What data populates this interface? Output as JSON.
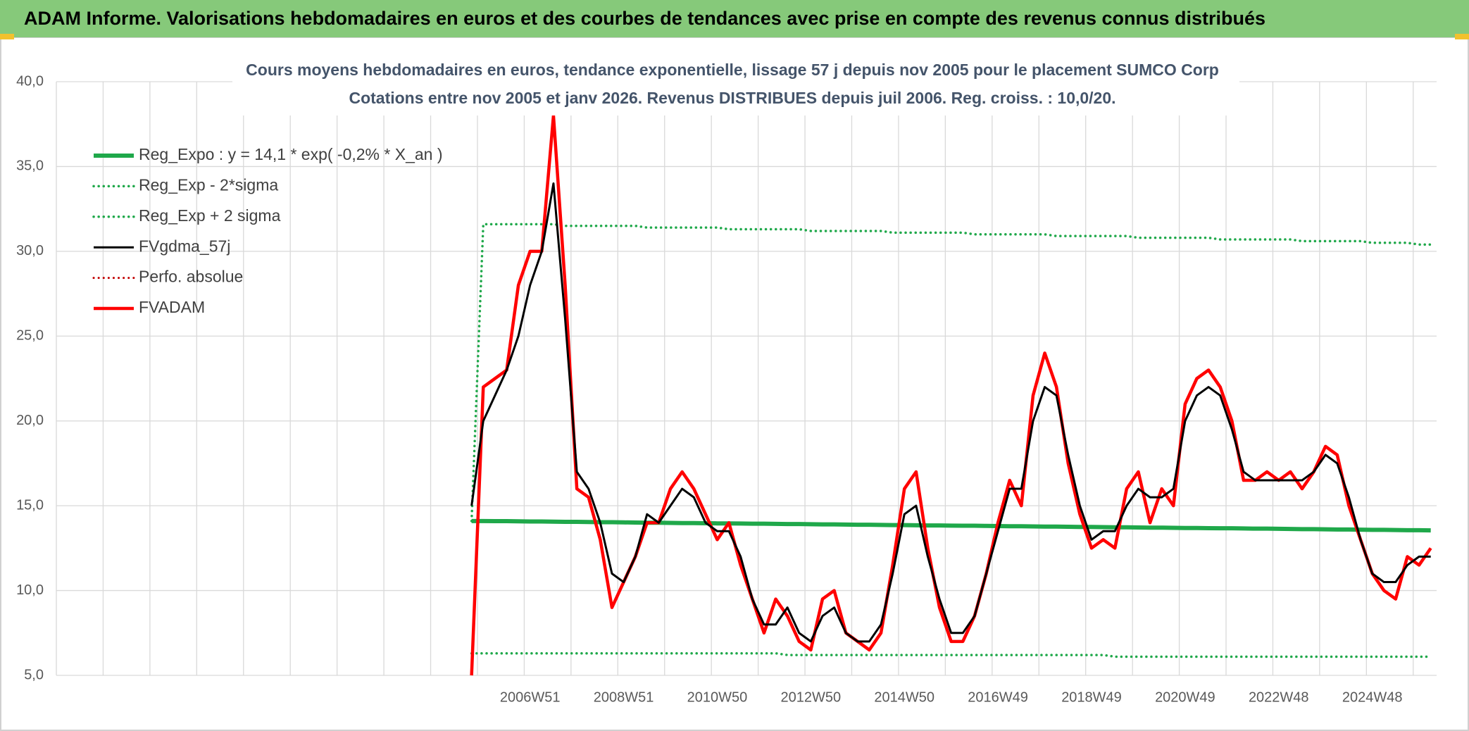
{
  "header": {
    "title": "ADAM Informe. Valorisations hebdomadaires en euros et des courbes de tendances avec prise en compte des revenus connus distribués"
  },
  "chart_data": {
    "type": "line",
    "title": "Cours moyens hebdomadaires en euros, tendance exponentielle, lissage 57 j depuis nov 2005 pour le placement SUMCO Corp",
    "subtitle": "Cotations entre nov 2005 et janv 2026. Revenus DISTRIBUES depuis juil 2006. Reg. croiss. : 10,0/20.",
    "categories": [
      null,
      null,
      null,
      null,
      null,
      null,
      null,
      null,
      null,
      null,
      null,
      null,
      null,
      null,
      null,
      null,
      null,
      null,
      null,
      null,
      null,
      null,
      null,
      null,
      null,
      null,
      null,
      null,
      null,
      null,
      null,
      null,
      null,
      null,
      null,
      null,
      null,
      null,
      null,
      null,
      "2006W51",
      null,
      null,
      null,
      null,
      null,
      null,
      null,
      "2008W51",
      null,
      null,
      null,
      null,
      null,
      null,
      null,
      "2010W50",
      null,
      null,
      null,
      null,
      null,
      null,
      null,
      "2012W50",
      null,
      null,
      null,
      null,
      null,
      null,
      null,
      "2014W50",
      null,
      null,
      null,
      null,
      null,
      null,
      null,
      "2016W49",
      null,
      null,
      null,
      null,
      null,
      null,
      null,
      "2018W49",
      null,
      null,
      null,
      null,
      null,
      null,
      null,
      "2020W49",
      null,
      null,
      null,
      null,
      null,
      null,
      null,
      "2022W48",
      null,
      null,
      null,
      null,
      null,
      null,
      null,
      "2024W48",
      null,
      null,
      null,
      null,
      null
    ],
    "ylim": [
      5,
      40
    ],
    "yticks": [
      {
        "value": 5,
        "label": "5,0"
      },
      {
        "value": 10,
        "label": "10,0"
      },
      {
        "value": 15,
        "label": "15,0"
      },
      {
        "value": 20,
        "label": "20,0"
      },
      {
        "value": 25,
        "label": "25,0"
      },
      {
        "value": 30,
        "label": "30,0"
      },
      {
        "value": 35,
        "label": "35,0"
      },
      {
        "value": 40,
        "label": "40,0"
      }
    ],
    "grid": true,
    "legend": "upper left",
    "series": [
      {
        "name": "Reg_Expo : y = 14,1 * exp( -0,2% *  X_an )",
        "color": "#1fa84a",
        "style": "solid",
        "values": [
          null,
          null,
          null,
          null,
          null,
          null,
          null,
          null,
          null,
          null,
          null,
          null,
          null,
          null,
          null,
          null,
          null,
          null,
          null,
          null,
          null,
          null,
          null,
          null,
          null,
          null,
          null,
          null,
          null,
          null,
          null,
          null,
          null,
          null,
          null,
          14.1,
          14.1,
          14.09,
          14.09,
          14.08,
          14.07,
          14.07,
          14.06,
          14.05,
          14.05,
          14.04,
          14.03,
          14.03,
          14.02,
          14.01,
          14.0,
          14.0,
          13.99,
          13.98,
          13.98,
          13.97,
          13.96,
          13.96,
          13.95,
          13.94,
          13.94,
          13.93,
          13.92,
          13.92,
          13.91,
          13.9,
          13.9,
          13.89,
          13.88,
          13.88,
          13.87,
          13.86,
          13.86,
          13.85,
          13.84,
          13.84,
          13.83,
          13.82,
          13.82,
          13.81,
          13.8,
          13.79,
          13.79,
          13.78,
          13.77,
          13.77,
          13.76,
          13.75,
          13.75,
          13.74,
          13.73,
          13.73,
          13.72,
          13.71,
          13.71,
          13.7,
          13.69,
          13.69,
          13.68,
          13.67,
          13.67,
          13.66,
          13.65,
          13.65,
          13.64,
          13.63,
          13.62,
          13.62,
          13.61,
          13.6,
          13.6,
          13.59,
          13.58,
          13.58,
          13.57,
          13.56,
          13.56,
          13.55
        ]
      },
      {
        "name": "Reg_Exp - 2*sigma",
        "color": "#1fa84a",
        "style": "dotted",
        "values": [
          null,
          null,
          null,
          null,
          null,
          null,
          null,
          null,
          null,
          null,
          null,
          null,
          null,
          null,
          null,
          null,
          null,
          null,
          null,
          null,
          null,
          null,
          null,
          null,
          null,
          null,
          null,
          null,
          null,
          null,
          null,
          null,
          null,
          null,
          null,
          6.3,
          6.3,
          6.3,
          6.3,
          6.3,
          6.3,
          6.3,
          6.3,
          6.3,
          6.3,
          6.3,
          6.3,
          6.3,
          6.3,
          6.3,
          6.3,
          6.3,
          6.3,
          6.3,
          6.3,
          6.3,
          6.3,
          6.3,
          6.3,
          6.3,
          6.3,
          6.3,
          6.2,
          6.2,
          6.2,
          6.2,
          6.2,
          6.2,
          6.2,
          6.2,
          6.2,
          6.2,
          6.2,
          6.2,
          6.2,
          6.2,
          6.2,
          6.2,
          6.2,
          6.2,
          6.2,
          6.2,
          6.2,
          6.2,
          6.2,
          6.2,
          6.2,
          6.2,
          6.2,
          6.2,
          6.1,
          6.1,
          6.1,
          6.1,
          6.1,
          6.1,
          6.1,
          6.1,
          6.1,
          6.1,
          6.1,
          6.1,
          6.1,
          6.1,
          6.1,
          6.1,
          6.1,
          6.1,
          6.1,
          6.1,
          6.1,
          6.1,
          6.1,
          6.1,
          6.1,
          6.1,
          6.1,
          6.1
        ]
      },
      {
        "name": "Reg_Exp + 2 sigma",
        "color": "#1fa84a",
        "style": "dotted",
        "values": [
          null,
          null,
          null,
          null,
          null,
          null,
          null,
          null,
          null,
          null,
          null,
          null,
          null,
          null,
          null,
          null,
          null,
          null,
          null,
          null,
          null,
          null,
          null,
          null,
          null,
          null,
          null,
          null,
          null,
          null,
          null,
          null,
          null,
          null,
          null,
          14.1,
          31.6,
          31.6,
          31.6,
          31.6,
          31.6,
          31.6,
          31.6,
          31.5,
          31.5,
          31.5,
          31.5,
          31.5,
          31.5,
          31.5,
          31.4,
          31.4,
          31.4,
          31.4,
          31.4,
          31.4,
          31.4,
          31.3,
          31.3,
          31.3,
          31.3,
          31.3,
          31.3,
          31.3,
          31.2,
          31.2,
          31.2,
          31.2,
          31.2,
          31.2,
          31.2,
          31.1,
          31.1,
          31.1,
          31.1,
          31.1,
          31.1,
          31.1,
          31.0,
          31.0,
          31.0,
          31.0,
          31.0,
          31.0,
          31.0,
          30.9,
          30.9,
          30.9,
          30.9,
          30.9,
          30.9,
          30.9,
          30.8,
          30.8,
          30.8,
          30.8,
          30.8,
          30.8,
          30.8,
          30.7,
          30.7,
          30.7,
          30.7,
          30.7,
          30.7,
          30.7,
          30.6,
          30.6,
          30.6,
          30.6,
          30.6,
          30.6,
          30.5,
          30.5,
          30.5,
          30.5,
          30.4,
          30.4
        ]
      },
      {
        "name": "FVgdma_57j",
        "color": "#000000",
        "style": "solid",
        "values": [
          null,
          null,
          null,
          null,
          null,
          null,
          null,
          null,
          null,
          null,
          null,
          null,
          null,
          null,
          null,
          null,
          null,
          null,
          null,
          null,
          null,
          null,
          null,
          null,
          null,
          null,
          null,
          null,
          null,
          null,
          null,
          null,
          null,
          null,
          null,
          15,
          20,
          21.5,
          23,
          25,
          28,
          30,
          34,
          26,
          17,
          16,
          14,
          11,
          10.5,
          12,
          14.5,
          14,
          15,
          16,
          15.5,
          14,
          13.5,
          13.5,
          12,
          9.5,
          8,
          8,
          9,
          7.5,
          7,
          8.5,
          9,
          7.5,
          7,
          7,
          8,
          11,
          14.5,
          15,
          12,
          9.5,
          7.5,
          7.5,
          8.5,
          11,
          13.5,
          16,
          16,
          20,
          22,
          21.5,
          18,
          15,
          13,
          13.5,
          13.5,
          15,
          16,
          15.5,
          15.5,
          16,
          20,
          21.5,
          22,
          21.5,
          19.5,
          17,
          16.5,
          16.5,
          16.5,
          16.5,
          16.5,
          17,
          18,
          17.5,
          15.5,
          13,
          11,
          10.5,
          10.5,
          11.5,
          12,
          12
        ]
      },
      {
        "name": "Perfo. absolue",
        "color": "#c00000",
        "style": "dotted",
        "values": [
          null,
          null,
          null,
          null,
          null,
          null,
          null,
          null,
          null,
          null,
          null,
          null,
          null,
          null,
          null,
          null,
          null,
          null,
          null,
          null,
          null,
          null,
          null,
          null,
          null,
          null,
          null,
          null,
          null,
          null,
          null,
          null,
          null,
          null,
          null,
          null,
          null,
          null,
          null,
          null,
          null,
          null,
          null,
          null,
          null,
          null,
          null,
          null,
          null,
          null,
          null,
          null,
          null,
          null,
          null,
          null,
          null,
          null,
          null,
          null,
          null,
          null,
          null,
          null,
          null,
          null,
          null,
          null,
          null,
          null,
          null,
          null,
          null,
          null,
          null,
          null,
          null,
          null,
          null,
          null,
          null,
          null,
          null,
          null,
          null,
          null,
          null,
          null,
          null,
          null,
          null,
          null,
          null,
          null,
          null,
          null,
          null,
          null,
          null,
          null,
          null,
          null,
          null,
          null,
          null,
          null,
          null,
          null,
          null,
          null,
          null,
          null,
          null,
          null,
          null,
          null,
          null,
          null
        ]
      },
      {
        "name": "FVADAM",
        "color": "#ff0000",
        "style": "solid",
        "values": [
          null,
          null,
          null,
          null,
          null,
          null,
          null,
          null,
          null,
          null,
          null,
          null,
          null,
          null,
          null,
          null,
          null,
          null,
          null,
          null,
          null,
          null,
          null,
          null,
          null,
          null,
          null,
          null,
          null,
          null,
          null,
          null,
          null,
          null,
          null,
          5,
          22,
          22.5,
          23,
          28,
          30,
          30,
          38,
          28,
          16,
          15.5,
          13,
          9,
          10.5,
          12,
          14,
          14,
          16,
          17,
          16,
          14.5,
          13,
          14,
          11.5,
          9.5,
          7.5,
          9.5,
          8.5,
          7,
          6.5,
          9.5,
          10,
          7.5,
          7,
          6.5,
          7.5,
          11.5,
          16,
          17,
          12.5,
          9,
          7,
          7,
          8.5,
          11,
          14,
          16.5,
          15,
          21.5,
          24,
          22,
          17.5,
          14.5,
          12.5,
          13,
          12.5,
          16,
          17,
          14,
          16,
          15,
          21,
          22.5,
          23,
          22,
          20,
          16.5,
          16.5,
          17,
          16.5,
          17,
          16,
          17,
          18.5,
          18,
          15,
          13,
          11,
          10,
          9.5,
          12,
          11.5,
          12.5
        ]
      }
    ]
  }
}
